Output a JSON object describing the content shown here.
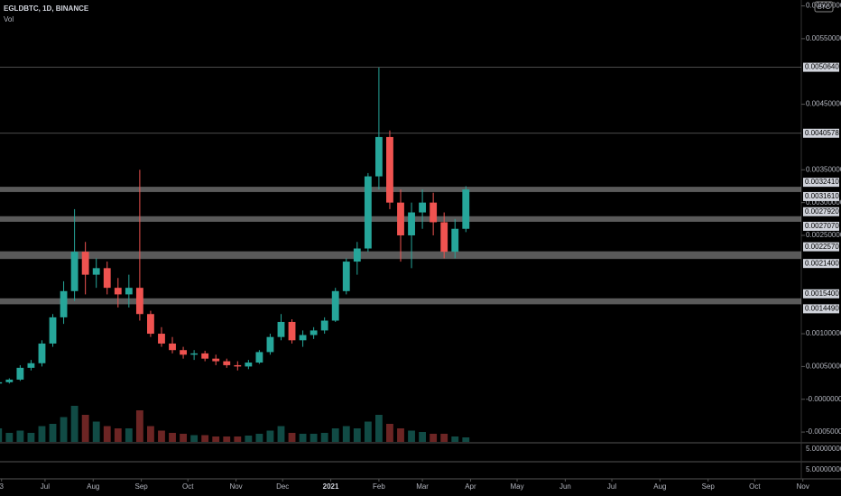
{
  "chart_data": {
    "type": "candlestick",
    "title": "EGLDBTC, 1D, BINANCE",
    "subtitle": "Vol",
    "currency": "BTC",
    "up_color": "#26a69a",
    "down_color": "#ef5350",
    "x": [
      0,
      7,
      14,
      21,
      28,
      35,
      42,
      49,
      56,
      63,
      70,
      77,
      84,
      91,
      98,
      105,
      112,
      119,
      126,
      133,
      140,
      147,
      154,
      161,
      168,
      175,
      182,
      189,
      196,
      203,
      210,
      217,
      224,
      231,
      238,
      245,
      252,
      259,
      266,
      273,
      280,
      287,
      294,
      301
    ],
    "open": [
      0.00024,
      0.00026,
      0.0003,
      0.00048,
      0.00055,
      0.00085,
      0.00125,
      0.00165,
      0.00225,
      0.0019,
      0.002,
      0.0017,
      0.0016,
      0.0017,
      0.0013,
      0.001,
      0.00085,
      0.00075,
      0.00068,
      0.0007,
      0.00062,
      0.00058,
      0.00052,
      0.0005,
      0.00056,
      0.00072,
      0.00095,
      0.00118,
      0.0009,
      0.00098,
      0.00105,
      0.0012,
      0.00165,
      0.0021,
      0.0023,
      0.0034,
      0.004,
      0.003,
      0.0025,
      0.00285,
      0.003,
      0.0027,
      0.00225,
      0.0026
    ],
    "high": [
      0.0003,
      0.00032,
      0.00052,
      0.0006,
      0.0009,
      0.0013,
      0.0018,
      0.0029,
      0.0024,
      0.00215,
      0.0021,
      0.00185,
      0.0019,
      0.0035,
      0.00135,
      0.0011,
      0.00095,
      0.0008,
      0.00075,
      0.00074,
      0.00068,
      0.00062,
      0.00058,
      0.0006,
      0.00075,
      0.001,
      0.0013,
      0.00122,
      0.00105,
      0.0011,
      0.00125,
      0.0017,
      0.00215,
      0.0024,
      0.00345,
      0.00506,
      0.0041,
      0.0032,
      0.003,
      0.0032,
      0.00315,
      0.00285,
      0.00275,
      0.00325
    ],
    "low": [
      0.00022,
      0.00024,
      0.00028,
      0.00044,
      0.0005,
      0.0008,
      0.00115,
      0.0015,
      0.0016,
      0.0017,
      0.0016,
      0.0014,
      0.0014,
      0.0012,
      0.00095,
      0.0008,
      0.0007,
      0.00062,
      0.0006,
      0.00058,
      0.00052,
      0.00048,
      0.00044,
      0.00046,
      0.00054,
      0.00068,
      0.0009,
      0.00085,
      0.0008,
      0.00092,
      0.001,
      0.00118,
      0.0016,
      0.0019,
      0.00225,
      0.0032,
      0.0029,
      0.0021,
      0.002,
      0.0026,
      0.0025,
      0.00215,
      0.00215,
      0.00255
    ],
    "close": [
      0.00026,
      0.0003,
      0.00048,
      0.00055,
      0.00085,
      0.00125,
      0.00165,
      0.00225,
      0.0019,
      0.002,
      0.0017,
      0.0016,
      0.0017,
      0.0013,
      0.001,
      0.00085,
      0.00075,
      0.00068,
      0.0007,
      0.00062,
      0.00058,
      0.00052,
      0.0005,
      0.00056,
      0.00072,
      0.00095,
      0.00118,
      0.0009,
      0.00098,
      0.00105,
      0.0012,
      0.00165,
      0.0021,
      0.0023,
      0.0034,
      0.004,
      0.003,
      0.0025,
      0.00285,
      0.003,
      0.0027,
      0.00225,
      0.0026,
      0.0032
    ],
    "volume": [
      30,
      20,
      25,
      20,
      35,
      40,
      55,
      80,
      60,
      45,
      35,
      30,
      30,
      70,
      35,
      25,
      20,
      18,
      15,
      15,
      12,
      12,
      12,
      14,
      18,
      25,
      35,
      20,
      18,
      18,
      20,
      30,
      35,
      30,
      45,
      60,
      40,
      30,
      25,
      22,
      18,
      18,
      12,
      10
    ],
    "xlim": [
      1,
      517
    ],
    "xticks": [
      {
        "value": 2,
        "label": "3"
      },
      {
        "value": 30,
        "label": "Jul"
      },
      {
        "value": 61,
        "label": "Aug"
      },
      {
        "value": 92,
        "label": "Sep"
      },
      {
        "value": 122,
        "label": "Oct"
      },
      {
        "value": 153,
        "label": "Nov"
      },
      {
        "value": 183,
        "label": "Dec"
      },
      {
        "value": 214,
        "label": "2021"
      },
      {
        "value": 245,
        "label": "Feb"
      },
      {
        "value": 273,
        "label": "Mar"
      },
      {
        "value": 304,
        "label": "Apr"
      },
      {
        "value": 334,
        "label": "May"
      },
      {
        "value": 365,
        "label": "Jun"
      },
      {
        "value": 395,
        "label": "Jul"
      },
      {
        "value": 426,
        "label": "Aug"
      },
      {
        "value": 457,
        "label": "Sep"
      },
      {
        "value": 487,
        "label": "Oct"
      },
      {
        "value": 518,
        "label": "Nov"
      }
    ],
    "ylim": [
      -0.00065,
      0.00609
    ],
    "yticks": [
      {
        "value": 0.006,
        "label": "0.00600000"
      },
      {
        "value": 0.0055,
        "label": "0.00550000"
      },
      {
        "value": 0.0045,
        "label": "0.00450000"
      },
      {
        "value": 0.0035,
        "label": "0.00350000"
      },
      {
        "value": 0.003,
        "label": "0.00300000"
      },
      {
        "value": 0.0025,
        "label": "0.00250000"
      },
      {
        "value": 0.001,
        "label": "0.00100000"
      },
      {
        "value": 0.0005,
        "label": "0.00050000"
      },
      {
        "value": 0,
        "label": "-0.00000000"
      },
      {
        "value": -0.0005,
        "label": "-0.00050000"
      }
    ],
    "lines": [
      {
        "value": 0.005064,
        "label": "0.00506400"
      },
      {
        "value": 0.00405784,
        "label": "0.00405784"
      }
    ],
    "zones": [
      {
        "high": {
          "value": 0.003241,
          "label": "0.00324100"
        },
        "low": {
          "value": 0.003161,
          "label": "0.00316100"
        }
      },
      {
        "high": {
          "value": 0.002792,
          "label": "0.00279200"
        },
        "low": {
          "value": 0.002707,
          "label": "0.00270700"
        }
      },
      {
        "high": {
          "value": 0.002257,
          "label": "0.00225700"
        },
        "low": {
          "value": 0.00214,
          "label": "0.00214000"
        }
      },
      {
        "high": {
          "value": 0.00154,
          "label": "0.00154000"
        },
        "low": {
          "value": 0.001449,
          "label": "0.00144900"
        }
      }
    ],
    "panes": [
      "5.00000000",
      "5.00000000"
    ]
  }
}
